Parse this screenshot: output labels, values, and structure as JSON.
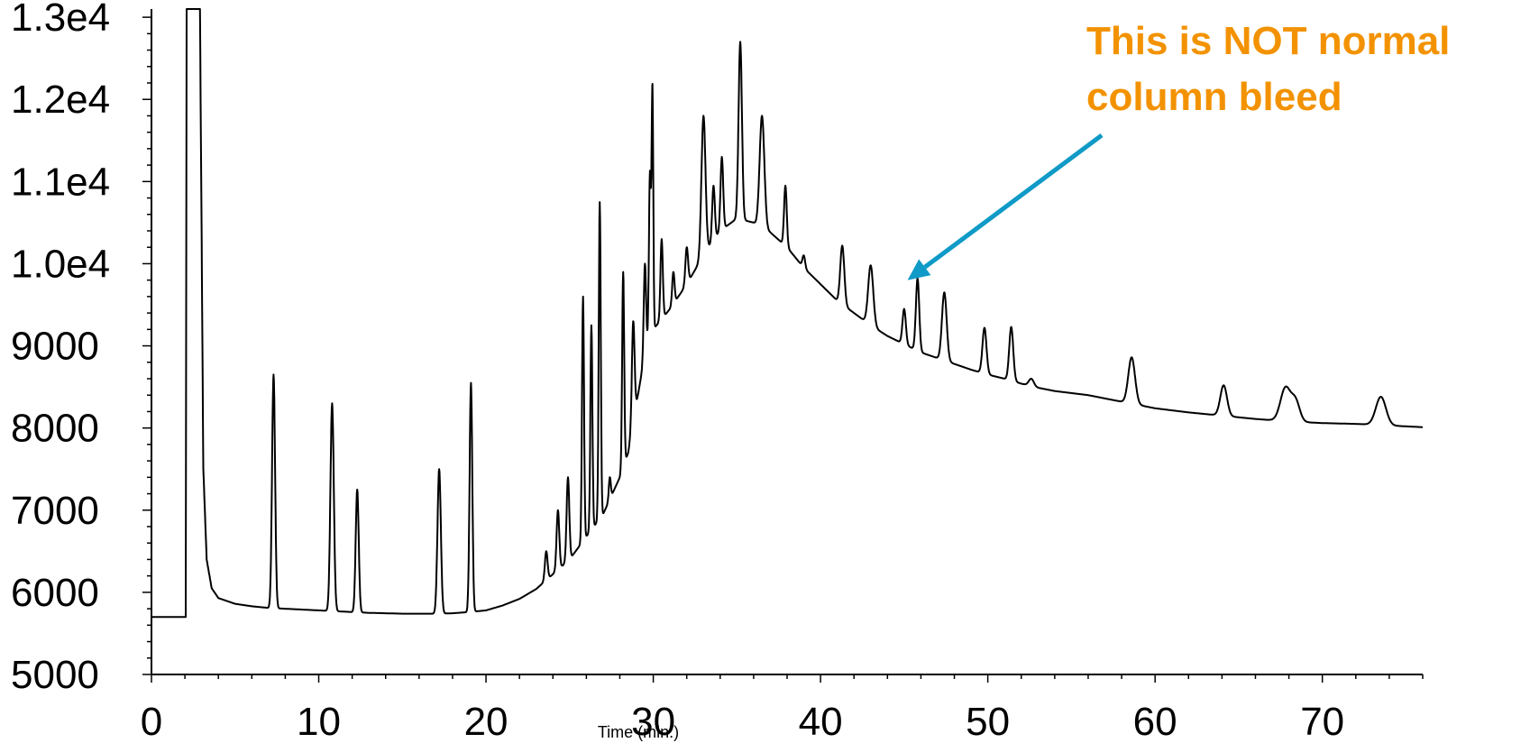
{
  "chart_data": {
    "type": "line",
    "title": "",
    "xlabel": "Time (min.)",
    "ylabel": "",
    "xlim": [
      0,
      76
    ],
    "ylim": [
      5000,
      13100
    ],
    "x_ticks": [
      0,
      10,
      20,
      30,
      40,
      50,
      60,
      70
    ],
    "x_tick_labels": [
      "0",
      "10",
      "20",
      "30",
      "40",
      "50",
      "60",
      "70"
    ],
    "y_ticks": [
      5000,
      6000,
      7000,
      8000,
      9000,
      10000,
      11000,
      12000,
      13000
    ],
    "y_tick_labels": [
      "5000",
      "6000",
      "7000",
      "8000",
      "9000",
      "1.0e4",
      "1.1e4",
      "1.2e4",
      "1.3e4"
    ],
    "grid": false,
    "line_color": "#000000",
    "baseline": [
      [
        0,
        5700
      ],
      [
        2.05,
        5700
      ],
      [
        2.1,
        13100
      ],
      [
        2.9,
        13100
      ],
      [
        3.1,
        7500
      ],
      [
        3.3,
        6400
      ],
      [
        3.6,
        6050
      ],
      [
        4.0,
        5930
      ],
      [
        5,
        5860
      ],
      [
        6,
        5830
      ],
      [
        7,
        5810
      ],
      [
        8,
        5800
      ],
      [
        9,
        5790
      ],
      [
        10,
        5780
      ],
      [
        11,
        5770
      ],
      [
        12,
        5760
      ],
      [
        13,
        5750
      ],
      [
        14,
        5745
      ],
      [
        15,
        5740
      ],
      [
        16,
        5740
      ],
      [
        17,
        5740
      ],
      [
        18,
        5745
      ],
      [
        19,
        5760
      ],
      [
        20,
        5780
      ],
      [
        21,
        5840
      ],
      [
        22,
        5920
      ],
      [
        23,
        6040
      ],
      [
        24,
        6220
      ],
      [
        25,
        6400
      ],
      [
        26,
        6680
      ],
      [
        27,
        6950
      ],
      [
        28,
        7400
      ],
      [
        28.5,
        7700
      ],
      [
        29,
        8300
      ],
      [
        29.5,
        8900
      ],
      [
        30,
        9200
      ],
      [
        31,
        9450
      ],
      [
        32,
        9750
      ],
      [
        33,
        10100
      ],
      [
        34,
        10400
      ],
      [
        35,
        10550
      ],
      [
        36,
        10500
      ],
      [
        37,
        10380
      ],
      [
        38,
        10200
      ],
      [
        39,
        9950
      ],
      [
        40,
        9750
      ],
      [
        41,
        9550
      ],
      [
        42,
        9400
      ],
      [
        43,
        9250
      ],
      [
        44,
        9120
      ],
      [
        45,
        9020
      ],
      [
        46,
        8920
      ],
      [
        47,
        8850
      ],
      [
        48,
        8780
      ],
      [
        49,
        8710
      ],
      [
        50,
        8650
      ],
      [
        51,
        8600
      ],
      [
        52,
        8540
      ],
      [
        53,
        8490
      ],
      [
        54,
        8450
      ],
      [
        56,
        8400
      ],
      [
        58,
        8320
      ],
      [
        60,
        8240
      ],
      [
        62,
        8190
      ],
      [
        64,
        8150
      ],
      [
        66,
        8110
      ],
      [
        68,
        8080
      ],
      [
        70,
        8060
      ],
      [
        72,
        8050
      ],
      [
        74,
        8030
      ],
      [
        76,
        8010
      ]
    ],
    "peaks": [
      {
        "rt": 7.3,
        "apex": 8650,
        "width": 0.09
      },
      {
        "rt": 10.8,
        "apex": 8300,
        "width": 0.1
      },
      {
        "rt": 12.3,
        "apex": 7250,
        "width": 0.09
      },
      {
        "rt": 17.2,
        "apex": 7500,
        "width": 0.1
      },
      {
        "rt": 19.1,
        "apex": 8550,
        "width": 0.08
      },
      {
        "rt": 23.6,
        "apex": 6500,
        "width": 0.08
      },
      {
        "rt": 24.3,
        "apex": 7000,
        "width": 0.08
      },
      {
        "rt": 24.9,
        "apex": 7400,
        "width": 0.08
      },
      {
        "rt": 25.8,
        "apex": 9600,
        "width": 0.06
      },
      {
        "rt": 26.3,
        "apex": 9250,
        "width": 0.06
      },
      {
        "rt": 26.8,
        "apex": 10750,
        "width": 0.06
      },
      {
        "rt": 27.4,
        "apex": 7400,
        "width": 0.06
      },
      {
        "rt": 28.2,
        "apex": 9900,
        "width": 0.06
      },
      {
        "rt": 28.8,
        "apex": 9300,
        "width": 0.08
      },
      {
        "rt": 29.5,
        "apex": 10000,
        "width": 0.07
      },
      {
        "rt": 29.8,
        "apex": 11100,
        "width": 0.06
      },
      {
        "rt": 29.95,
        "apex": 12100,
        "width": 0.05
      },
      {
        "rt": 30.5,
        "apex": 10300,
        "width": 0.07
      },
      {
        "rt": 31.2,
        "apex": 9900,
        "width": 0.07
      },
      {
        "rt": 32.0,
        "apex": 10200,
        "width": 0.08
      },
      {
        "rt": 33.0,
        "apex": 11800,
        "width": 0.12
      },
      {
        "rt": 33.6,
        "apex": 10950,
        "width": 0.08
      },
      {
        "rt": 34.1,
        "apex": 11300,
        "width": 0.08
      },
      {
        "rt": 35.2,
        "apex": 12700,
        "width": 0.1
      },
      {
        "rt": 36.5,
        "apex": 11800,
        "width": 0.14
      },
      {
        "rt": 37.9,
        "apex": 10950,
        "width": 0.08
      },
      {
        "rt": 39.0,
        "apex": 10100,
        "width": 0.08
      },
      {
        "rt": 41.3,
        "apex": 10220,
        "width": 0.12
      },
      {
        "rt": 43.0,
        "apex": 9980,
        "width": 0.15
      },
      {
        "rt": 45.0,
        "apex": 9450,
        "width": 0.1
      },
      {
        "rt": 45.8,
        "apex": 9820,
        "width": 0.1
      },
      {
        "rt": 47.4,
        "apex": 9650,
        "width": 0.14
      },
      {
        "rt": 49.8,
        "apex": 9220,
        "width": 0.12
      },
      {
        "rt": 51.4,
        "apex": 9230,
        "width": 0.12
      },
      {
        "rt": 52.6,
        "apex": 8600,
        "width": 0.15
      },
      {
        "rt": 58.6,
        "apex": 8860,
        "width": 0.2
      },
      {
        "rt": 64.1,
        "apex": 8520,
        "width": 0.2
      },
      {
        "rt": 67.8,
        "apex": 8490,
        "width": 0.3
      },
      {
        "rt": 68.4,
        "apex": 8320,
        "width": 0.25
      },
      {
        "rt": 73.5,
        "apex": 8380,
        "width": 0.3
      }
    ],
    "annotations": [
      {
        "lines": [
          "This is NOT normal",
          "column bleed"
        ],
        "color": "#f39200",
        "arrow_color": "#0f9ac7",
        "arrow_target": [
          45.2,
          9800
        ]
      }
    ]
  }
}
